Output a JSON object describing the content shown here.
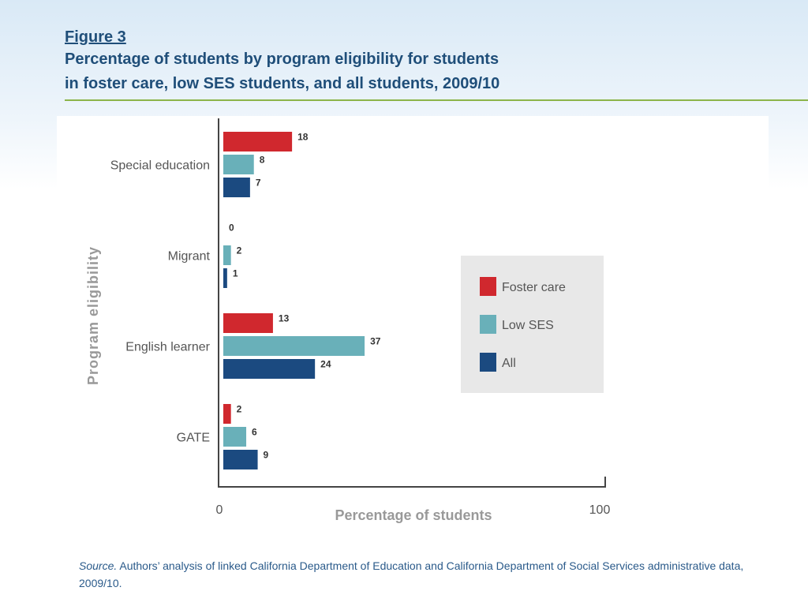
{
  "figure_label": "Figure 3",
  "title_line1": "Percentage of students by program eligibility for students",
  "title_line2": "in foster care, low SES students, and all students, 2009/10",
  "source_label": "Source.",
  "source_text": "Authors’ analysis of linked California Department of Education and California Department of Social Services administrative data, 2009/10.",
  "colors": {
    "Foster care": "#d0282e",
    "Low SES": "#69b0b9",
    "All": "#1b4a80",
    "title": "#1f4e79",
    "rule": "#8cb44a"
  },
  "chart_data": {
    "type": "bar",
    "orientation": "horizontal",
    "categories": [
      "Special education",
      "Migrant",
      "English learner",
      "GATE"
    ],
    "series": [
      {
        "name": "Foster care",
        "values": [
          18,
          0,
          13,
          2
        ]
      },
      {
        "name": "Low SES",
        "values": [
          8,
          2,
          37,
          6
        ]
      },
      {
        "name": "All",
        "values": [
          7,
          1,
          24,
          9
        ]
      }
    ],
    "xlabel": "Percentage of students",
    "ylabel": "Program eligibility",
    "xlim": [
      0,
      100
    ],
    "xticks": [
      "0",
      "100"
    ],
    "legend_position": "right",
    "data_labels": true,
    "grid": false
  }
}
